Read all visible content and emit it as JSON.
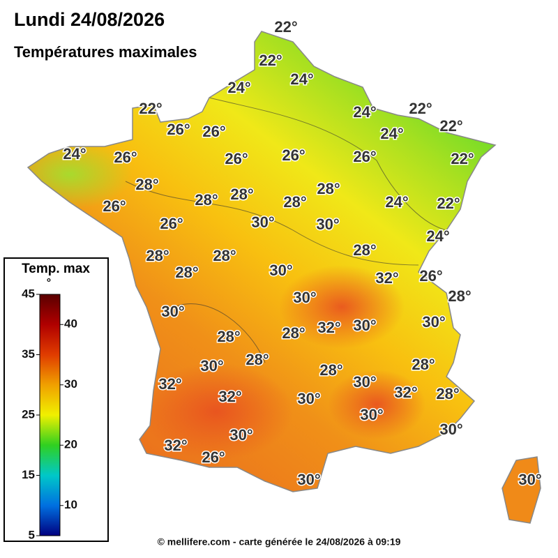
{
  "header": {
    "title": "Lundi 24/08/2026",
    "subtitle": "Températures maximales"
  },
  "labels": [
    "22°",
    "22°",
    "24°",
    "24°",
    "22°",
    "26°",
    "26°",
    "24°",
    "22°",
    "24°",
    "22°",
    "24°",
    "26°",
    "26°",
    "26°",
    "26°",
    "22°",
    "28°",
    "28°",
    "28°",
    "28°",
    "28°",
    "26°",
    "24°",
    "22°",
    "26°",
    "30°",
    "30°",
    "24°",
    "28°",
    "28°",
    "28°",
    "30°",
    "28°",
    "32°",
    "26°",
    "28°",
    "30°",
    "30°",
    "32°",
    "30°",
    "28°",
    "30°",
    "28°",
    "28°",
    "30°",
    "28°",
    "28°",
    "30°",
    "32°",
    "32°",
    "30°",
    "32°",
    "28°",
    "30°",
    "30°",
    "30°",
    "32°",
    "26°",
    "30°",
    "30°"
  ],
  "legend": {
    "title_lines": [
      "Temp. max",
      "°"
    ],
    "lim": [
      5,
      45
    ],
    "ticks_left": [
      45,
      35,
      25,
      15,
      5
    ],
    "ticks_right": [
      40,
      30,
      20,
      10
    ]
  },
  "footer": "© mellifere.com - carte générée le 24/08/2026 à 09:19"
}
